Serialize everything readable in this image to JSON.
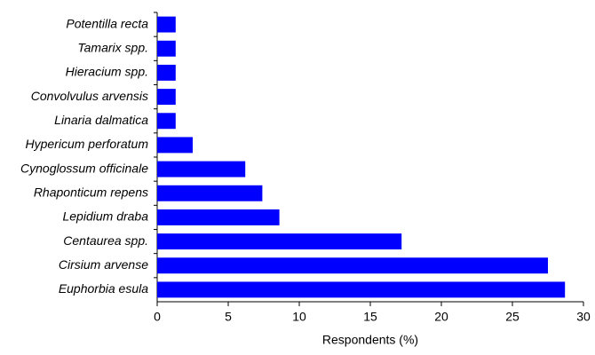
{
  "chart_data": {
    "type": "barh",
    "x_label": "Respondents (%)",
    "categories": [
      "Potentilla recta",
      "Tamarix spp.",
      "Hieracium spp.",
      "Convolvulus arvensis",
      "Linaria dalmatica",
      "Hypericum perforatum",
      "Cynoglossum officinale",
      "Rhaponticum repens",
      "Lepidium draba",
      "Centaurea spp.",
      "Cirsium arvense",
      "Euphorbia esula"
    ],
    "values": [
      1.3,
      1.3,
      1.3,
      1.3,
      1.3,
      2.5,
      6.2,
      7.4,
      8.6,
      17.2,
      27.5,
      28.7
    ],
    "color": "#0000ff",
    "xlim": [
      0,
      30
    ],
    "xticks": [
      0,
      5,
      10,
      15,
      20,
      25,
      30
    ],
    "grid": false
  }
}
